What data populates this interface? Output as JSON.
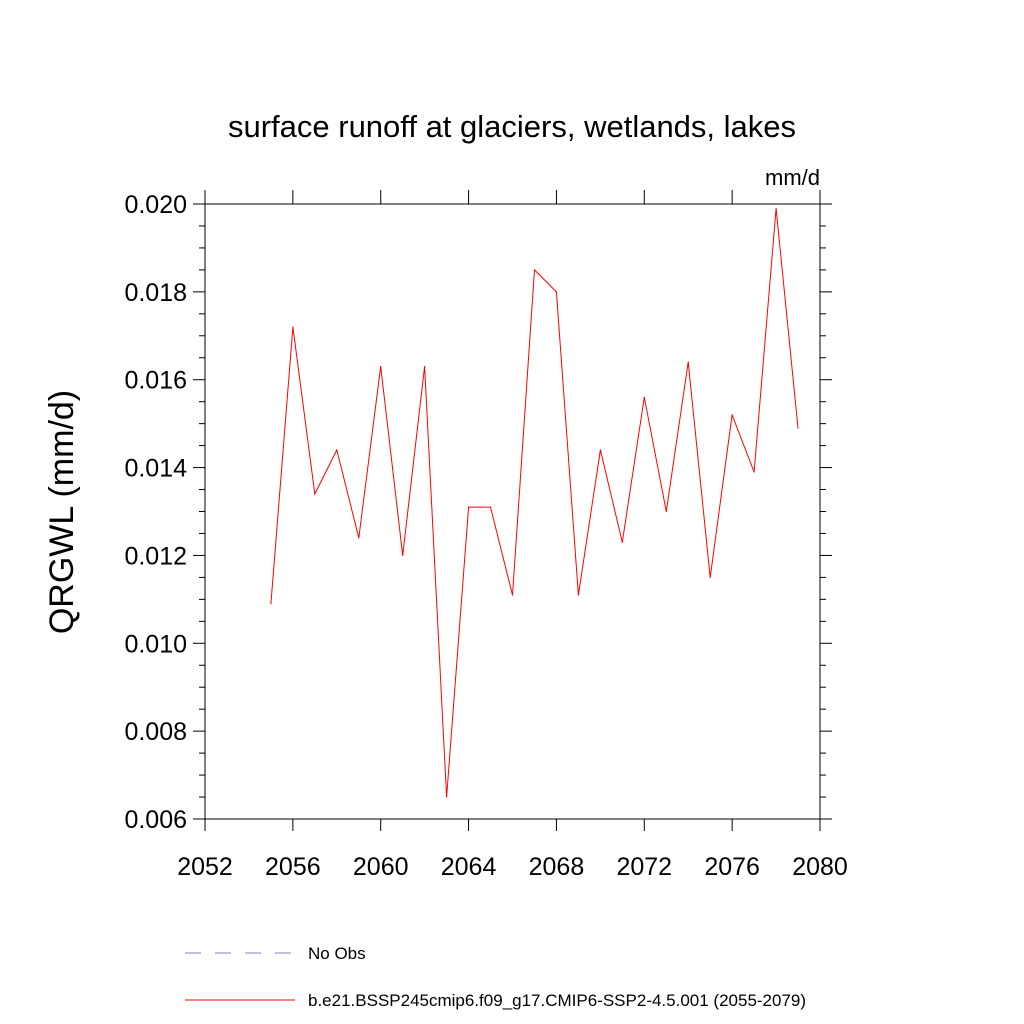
{
  "chart_data": {
    "type": "line",
    "title": "surface runoff at glaciers, wetlands, lakes",
    "units": "mm/d",
    "xlabel": "",
    "ylabel": "QRGWL  (mm/d)",
    "xlim": [
      2052,
      2080
    ],
    "ylim": [
      0.006,
      0.02
    ],
    "x_ticks": [
      "2052",
      "2056",
      "2060",
      "2064",
      "2068",
      "2072",
      "2076",
      "2080"
    ],
    "y_ticks": [
      "0.006",
      "0.008",
      "0.010",
      "0.012",
      "0.014",
      "0.016",
      "0.018",
      "0.020"
    ],
    "grid": false,
    "legend_position": "bottom",
    "legend": [
      {
        "label": "No Obs",
        "color": "#8080c0",
        "dash": "dashed"
      },
      {
        "label": "b.e21.BSSP245cmip6.f09_g17.CMIP6-SSP2-4.5.001 (2055-2079)",
        "color": "#ff0000",
        "dash": "solid"
      }
    ],
    "series": [
      {
        "name": "b.e21.BSSP245cmip6.f09_g17.CMIP6-SSP2-4.5.001 (2055-2079)",
        "color": "#ff0000",
        "x": [
          2055,
          2056,
          2057,
          2058,
          2059,
          2060,
          2061,
          2062,
          2063,
          2064,
          2065,
          2066,
          2067,
          2068,
          2069,
          2070,
          2071,
          2072,
          2073,
          2074,
          2075,
          2076,
          2077,
          2078,
          2079
        ],
        "y": [
          0.0109,
          0.0172,
          0.0134,
          0.0144,
          0.0124,
          0.0163,
          0.012,
          0.0163,
          0.0065,
          0.0131,
          0.0131,
          0.0111,
          0.0185,
          0.018,
          0.0111,
          0.0144,
          0.0123,
          0.0156,
          0.013,
          0.0164,
          0.0115,
          0.0152,
          0.0139,
          0.0199,
          0.0149
        ]
      }
    ]
  }
}
